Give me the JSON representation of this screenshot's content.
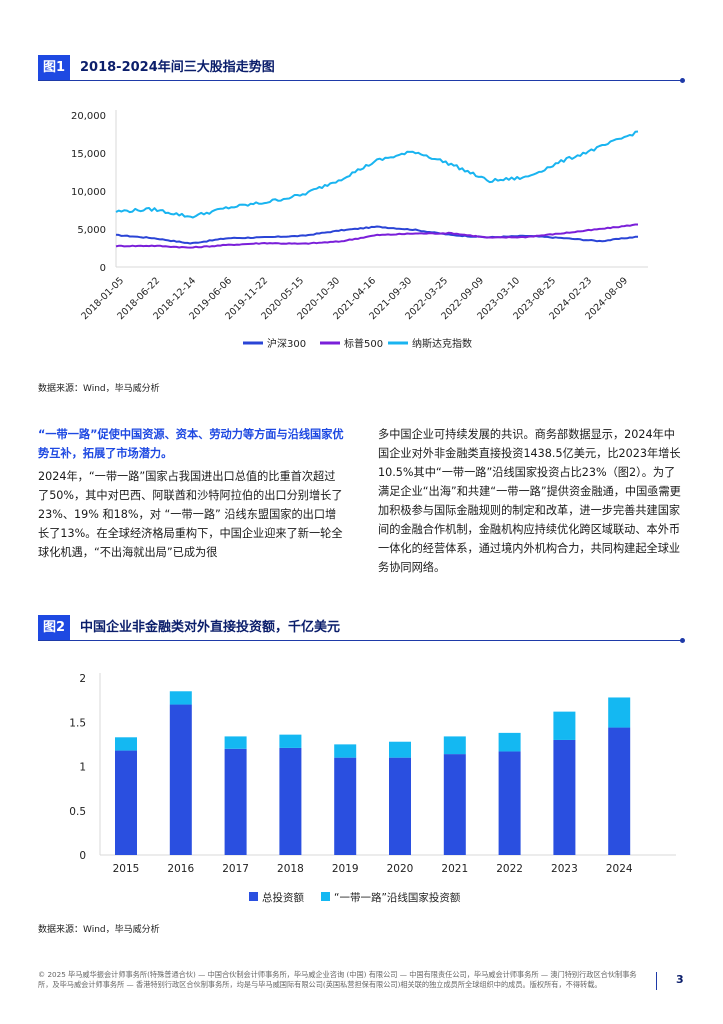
{
  "figure1": {
    "tag": "图1",
    "title": "2018-2024年间三大股指走势图",
    "source": "数据来源：Wind，毕马威分析"
  },
  "figure2": {
    "tag": "图2",
    "title": "中国企业非金融类对外直接投资额，千亿美元",
    "source": "数据来源：Wind，毕马威分析"
  },
  "text": {
    "subhead": "“一带一路”促使中国资源、资本、劳动力等方面与沿线国家优势互补，拓展了市场潜力。",
    "para1": "2024年，“一带一路”国家占我国进出口总值的比重首次超过了50%，其中对巴西、阿联酋和沙特阿拉伯的出口分别增长了23%、19% 和18%，对 “一带一路” 沿线东盟国家的出口增长了13%。在全球经济格局重构下，中国企业迎来了新一轮全球化机遇，“不出海就出局”已成为很",
    "para2": "多中国企业可持续发展的共识。商务部数据显示，2024年中国企业对外非金融类直接投资1438.5亿美元，比2023年增长10.5%其中“一带一路”沿线国家投资占比23%（图2）。为了满足企业“出海”和共建“一带一路”提供资金融通，中国亟需更加积极参与国际金融规则的制定和改革，进一步完善共建国家间的金融合作机制，金融机构应持续优化跨区域联动、本外币一体化的经营体系，通过境内外机构合力，共同构建起全球业务协同网络。"
  },
  "footer": {
    "text": "© 2025 毕马威华振会计师事务所(特殊普通合伙) — 中国合伙制会计师事务所，毕马威企业咨询 (中国) 有限公司 — 中国有限责任公司，毕马威会计师事务所 — 澳门特别行政区合伙制事务所，及毕马威会计师事务所 — 香港特别行政区合伙制事务所，均是与毕马威国际有限公司(英国私营担保有限公司)相关联的独立成员所全球组织中的成员。版权所有，不得转载。",
    "page": "3"
  },
  "colors": {
    "csi300": "#2a44d6",
    "sp500": "#7a1fd9",
    "nasdaq": "#19b4f0",
    "total": "#2a4fe0",
    "bri": "#14b8f2"
  },
  "chart_data": [
    {
      "type": "line",
      "title": "2018-2024年间三大股指走势图",
      "xlabel": "",
      "ylabel": "",
      "ylim": [
        0,
        20000
      ],
      "yticks": [
        "0",
        "5,000",
        "10,000",
        "15,000",
        "20,000"
      ],
      "x": [
        "2018-01-05",
        "2018-06-22",
        "2018-12-14",
        "2019-06-06",
        "2019-11-22",
        "2020-05-15",
        "2020-10-30",
        "2021-04-16",
        "2021-09-30",
        "2022-03-25",
        "2022-09-09",
        "2023-03-10",
        "2023-08-25",
        "2024-02-23",
        "2024-08-09"
      ],
      "legend": "bottom",
      "series": [
        {
          "name": "沪深300",
          "color": "#2a44d6",
          "values": [
            4200,
            3800,
            3100,
            3800,
            3900,
            4100,
            4800,
            5300,
            4900,
            4200,
            3900,
            4100,
            3800,
            3400,
            4000
          ]
        },
        {
          "name": "标普500",
          "color": "#7a1fd9",
          "values": [
            2750,
            2800,
            2550,
            2900,
            3150,
            3050,
            3350,
            4200,
            4400,
            4450,
            3850,
            3950,
            4450,
            5000,
            5600
          ]
        },
        {
          "name": "纳斯达克指数",
          "color": "#19b4f0",
          "values": [
            7300,
            7600,
            6600,
            7800,
            8500,
            9500,
            11500,
            14000,
            15200,
            13500,
            11300,
            11800,
            14000,
            15800,
            17800
          ]
        }
      ]
    },
    {
      "type": "bar",
      "title": "中国企业非金融类对外直接投资额，千亿美元",
      "stacked": true,
      "categories": [
        "2015",
        "2016",
        "2017",
        "2018",
        "2019",
        "2020",
        "2021",
        "2022",
        "2023",
        "2024"
      ],
      "ylim": [
        0,
        2
      ],
      "yticks": [
        "0",
        "0.5",
        "1",
        "1.5",
        "2"
      ],
      "legend": "bottom",
      "series": [
        {
          "name": "总投资额",
          "color": "#2a4fe0",
          "values": [
            1.18,
            1.7,
            1.2,
            1.21,
            1.1,
            1.1,
            1.14,
            1.17,
            1.3,
            1.44
          ]
        },
        {
          "name": "“一带一路”沿线国家投资额",
          "color": "#14b8f2",
          "values": [
            0.15,
            0.15,
            0.14,
            0.15,
            0.15,
            0.18,
            0.2,
            0.21,
            0.32,
            0.34
          ]
        }
      ]
    }
  ]
}
